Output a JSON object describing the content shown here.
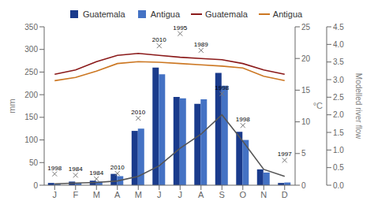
{
  "chart_data": {
    "type": "bar",
    "categories": [
      "J",
      "F",
      "M",
      "A",
      "M",
      "J",
      "J",
      "A",
      "S",
      "O",
      "N",
      "D"
    ],
    "series": [
      {
        "name": "Guatemala",
        "type": "bar",
        "color": "#1a3b8c",
        "values": [
          5,
          8,
          10,
          25,
          120,
          260,
          195,
          180,
          248,
          118,
          35,
          5
        ]
      },
      {
        "name": "Antigua",
        "type": "bar",
        "color": "#4472c4",
        "values": [
          3,
          5,
          8,
          20,
          125,
          245,
          192,
          190,
          220,
          100,
          28,
          6
        ]
      },
      {
        "name": "Guatemala",
        "type": "line",
        "axis": "y2",
        "color": "#8b1a1a",
        "values": [
          17.5,
          18.2,
          19.5,
          20.5,
          20.8,
          20.5,
          20.2,
          20.0,
          19.8,
          19.2,
          18.2,
          17.5
        ]
      },
      {
        "name": "Antigua",
        "type": "line",
        "axis": "y2",
        "color": "#cc7722",
        "values": [
          16.5,
          17.0,
          18.0,
          19.2,
          19.5,
          19.4,
          19.2,
          19.0,
          18.8,
          18.5,
          17.2,
          16.5
        ]
      },
      {
        "type": "line",
        "axis": "y3",
        "color": "#555555",
        "values": [
          0.04,
          0.06,
          0.08,
          0.12,
          0.25,
          0.55,
          1.05,
          1.45,
          2.0,
          1.25,
          0.45,
          0.25
        ]
      }
    ],
    "ylabel": "mm",
    "ylim": [
      0,
      350
    ],
    "yticks": [
      0,
      50,
      100,
      150,
      200,
      250,
      300,
      350
    ],
    "y2label": "°C",
    "y2lim": [
      0,
      25
    ],
    "y2ticks": [
      0,
      5,
      10,
      15,
      20,
      25
    ],
    "y3label": "Modelled river flow",
    "y3lim": [
      0,
      4.5
    ],
    "y3ticks": [
      {
        "value": 0,
        "label": "0.0"
      },
      0.5,
      {
        "value": 1,
        "label": "1.0"
      },
      1.5,
      {
        "value": 2,
        "label": "2.0"
      },
      2.5,
      {
        "value": 3,
        "label": "3.0"
      },
      3.5,
      {
        "value": 4,
        "label": "4.0"
      },
      4.5
    ],
    "annotations": [
      {
        "text": "1998",
        "category_index": 0,
        "y": 25
      },
      {
        "text": "1984",
        "category_index": 1,
        "y": 22
      },
      {
        "text": "1984",
        "category_index": 2,
        "y": 14
      },
      {
        "text": "2010",
        "category_index": 3,
        "y": 26
      },
      {
        "text": "2010",
        "category_index": 4,
        "y": 148
      },
      {
        "text": "2010",
        "category_index": 5,
        "y": 308
      },
      {
        "text": "1995",
        "category_index": 6,
        "y": 335
      },
      {
        "text": "1989",
        "category_index": 7,
        "y": 298
      },
      {
        "text": "1998",
        "category_index": 8,
        "y": 202
      },
      {
        "text": "1998",
        "category_index": 9,
        "y": 132
      },
      {
        "text": "1997",
        "category_index": 11,
        "y": 55
      }
    ],
    "legend": "top",
    "grid": false
  }
}
